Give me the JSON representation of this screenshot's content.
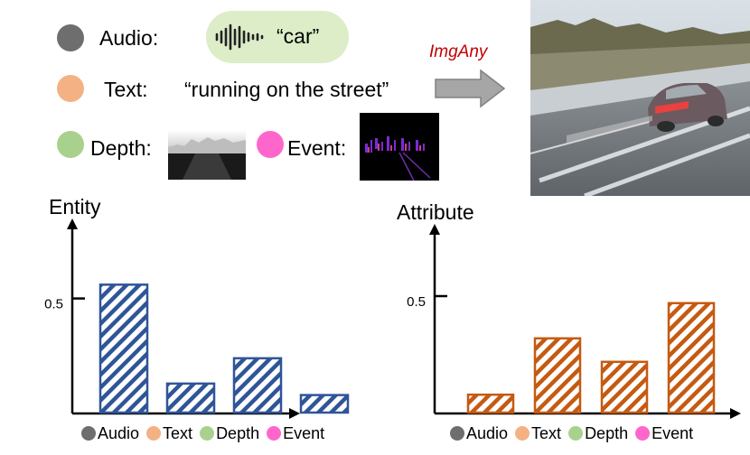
{
  "inputs": {
    "audio": {
      "label": "Audio:",
      "value": "“car”",
      "color": "#6e6e6e"
    },
    "text": {
      "label": "Text:",
      "value": "“running on the street”",
      "color": "#f4b183"
    },
    "depth": {
      "label": "Depth:",
      "color": "#a9d18e"
    },
    "event": {
      "label": "Event:",
      "color": "#ff66cc"
    }
  },
  "arrow_label": "ImgAny",
  "icons": {
    "waveform": "audio-waveform-icon",
    "depth_map": "depth-map-thumbnail",
    "event_map": "event-map-thumbnail",
    "output": "generated-car-image"
  },
  "chart_data": [
    {
      "type": "bar",
      "title": "Entity",
      "categories": [
        "Audio",
        "Text",
        "Depth",
        "Event"
      ],
      "values": [
        0.56,
        0.13,
        0.24,
        0.08
      ],
      "ytick_labels": [
        "0.5"
      ],
      "yticks": [
        0.5
      ],
      "ylim": [
        0,
        0.84
      ],
      "legend": [
        "Audio",
        "Text",
        "Depth",
        "Event"
      ],
      "legend_position": "bottom",
      "bar_color": "#2f5597",
      "hatch": "diagonal",
      "grid": false
    },
    {
      "type": "bar",
      "title": "Attribute",
      "categories": [
        "Audio",
        "Text",
        "Depth",
        "Event"
      ],
      "values": [
        0.08,
        0.32,
        0.22,
        0.47
      ],
      "ytick_labels": [
        "0.5"
      ],
      "yticks": [
        0.5
      ],
      "ylim": [
        0,
        0.8
      ],
      "legend": [
        "Audio",
        "Text",
        "Depth",
        "Event"
      ],
      "legend_position": "bottom",
      "bar_color": "#c55a11",
      "hatch": "diagonal",
      "grid": false
    }
  ],
  "legend_colors": [
    "#6e6e6e",
    "#f4b183",
    "#a9d18e",
    "#ff66cc"
  ]
}
